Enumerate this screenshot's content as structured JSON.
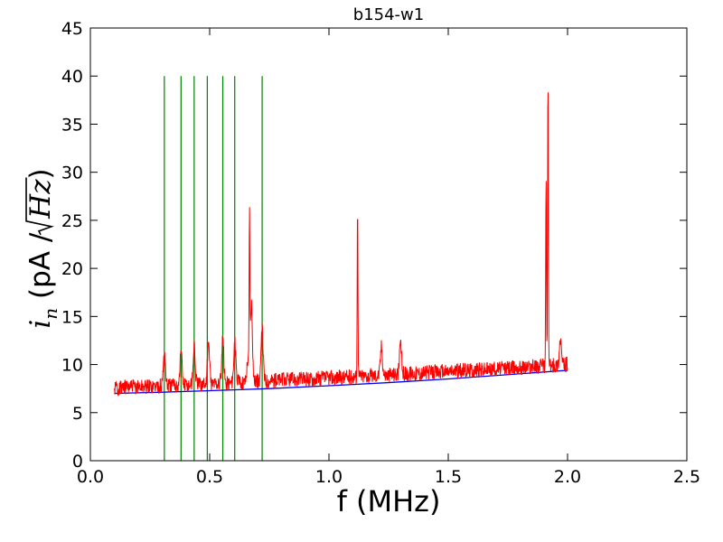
{
  "chart_data": {
    "type": "line",
    "title": "b154-w1",
    "xlabel": "f (MHz)",
    "ylabel": {
      "symbol": "i",
      "subscript": "n",
      "units_open": "(pA / ",
      "sqrt_content": "Hz",
      "units_close": ")"
    },
    "xlim": [
      0.0,
      2.5
    ],
    "ylim": [
      0,
      45
    ],
    "xticks": [
      0.0,
      0.5,
      1.0,
      1.5,
      2.0,
      2.5
    ],
    "xtick_labels": [
      "0.0",
      "0.5",
      "1.0",
      "1.5",
      "2.0",
      "2.5"
    ],
    "yticks": [
      0,
      5,
      10,
      15,
      20,
      25,
      30,
      35,
      40,
      45
    ],
    "ytick_labels": [
      "0",
      "5",
      "10",
      "15",
      "20",
      "25",
      "30",
      "35",
      "40",
      "45"
    ],
    "grid": false,
    "legend": "none",
    "series": [
      {
        "color": "#ff0000",
        "style": "noisy-spectrum",
        "x_range": [
          0.1,
          2.0
        ],
        "baseline_points": [
          [
            0.1,
            7.6
          ],
          [
            0.3,
            7.8
          ],
          [
            0.5,
            8.0
          ],
          [
            0.7,
            8.3
          ],
          [
            1.0,
            8.6
          ],
          [
            1.5,
            9.3
          ],
          [
            2.0,
            10.0
          ]
        ],
        "noise_amplitude": 0.8,
        "peaks": [
          {
            "x": 0.31,
            "y": 11.3
          },
          {
            "x": 0.38,
            "y": 11.4
          },
          {
            "x": 0.435,
            "y": 11.9
          },
          {
            "x": 0.495,
            "y": 12.3
          },
          {
            "x": 0.555,
            "y": 12.5
          },
          {
            "x": 0.605,
            "y": 12.3
          },
          {
            "x": 0.66,
            "y": 10.5
          },
          {
            "x": 0.667,
            "y": 24.6
          },
          {
            "x": 0.675,
            "y": 16.5
          },
          {
            "x": 0.72,
            "y": 13.5
          },
          {
            "x": 1.12,
            "y": 26.9
          },
          {
            "x": 1.22,
            "y": 11.9
          },
          {
            "x": 1.3,
            "y": 12.0
          },
          {
            "x": 1.91,
            "y": 30.2
          },
          {
            "x": 1.918,
            "y": 40.3
          },
          {
            "x": 1.97,
            "y": 12.7
          }
        ]
      },
      {
        "color": "#0000ff",
        "style": "smooth",
        "points": [
          [
            0.1,
            7.0
          ],
          [
            0.3,
            7.12
          ],
          [
            0.5,
            7.28
          ],
          [
            0.75,
            7.5
          ],
          [
            1.0,
            7.8
          ],
          [
            1.25,
            8.12
          ],
          [
            1.5,
            8.5
          ],
          [
            1.75,
            8.95
          ],
          [
            2.0,
            9.4
          ]
        ]
      }
    ],
    "vlines": {
      "color": "#008000",
      "x": [
        0.31,
        0.38,
        0.435,
        0.49,
        0.555,
        0.605,
        0.72
      ],
      "ymin": 0,
      "ymax": 40
    }
  }
}
